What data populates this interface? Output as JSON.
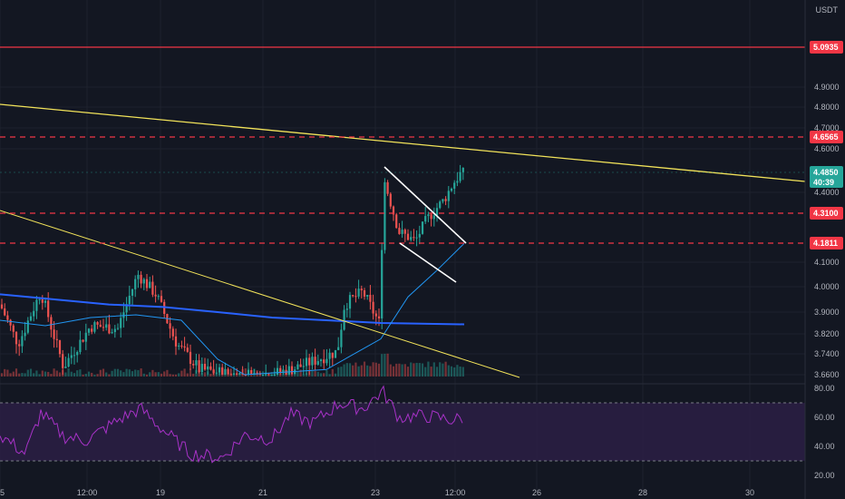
{
  "currency": "USDT",
  "colors": {
    "bg": "#131722",
    "grid": "#1e222d",
    "up": "#26a69a",
    "down": "#ef5350",
    "ma_slow": "#2962ff",
    "ma_fast": "#2196f3",
    "trend": "#f2e35a",
    "resistance": "#f23645",
    "rsi": "#a832c8",
    "rsi_band": "#2b1f44",
    "flag": "#ffffff"
  },
  "chart_data": {
    "type": "candlestick",
    "x_ticks": [
      "5",
      "12:00",
      "19",
      "21",
      "23",
      "12:00",
      "26",
      "28",
      "30"
    ],
    "price_ticks": [
      "4.9000",
      "4.8000",
      "4.7000",
      "4.6000",
      "4.4000",
      "4.1000",
      "4.0000",
      "3.9000",
      "3.8200",
      "3.7400",
      "3.6600"
    ],
    "rsi_ticks": [
      "80.00",
      "60.00",
      "40.00",
      "20.00"
    ],
    "rsi_bands": [
      70,
      30
    ],
    "price_tags": [
      {
        "label": "5.0935",
        "price": 5.0935,
        "color": "#f23645",
        "style": "solid"
      },
      {
        "label": "4.6565",
        "price": 4.6565,
        "color": "#f23645",
        "style": "dashed"
      },
      {
        "label": "4.3100",
        "price": 4.31,
        "color": "#f23645",
        "style": "dashed"
      },
      {
        "label": "4.1811",
        "price": 4.1811,
        "color": "#f23645",
        "style": "dashed"
      }
    ],
    "current_price": {
      "label": "4.4850",
      "countdown": "40:39",
      "price": 4.485,
      "color": "#26a69a"
    }
  }
}
